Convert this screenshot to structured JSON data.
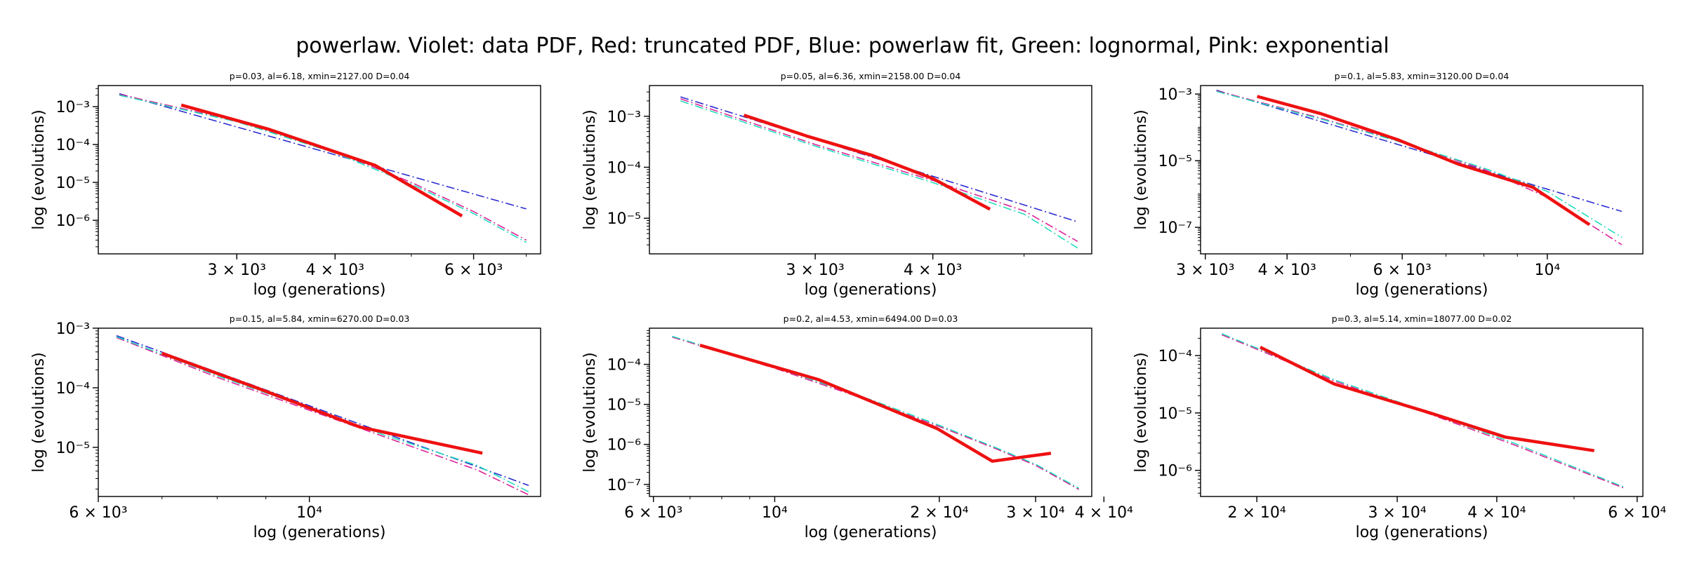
{
  "figure": {
    "suptitle": "powerlaw. Violet: data PDF, Red: truncated PDF, Blue: powerlaw fit, Green: lognormal, Pink: exponential",
    "colors": {
      "data": "#ee00ee",
      "truncated": "#ee1111",
      "powerlaw": "#2a2ad0",
      "lognormal": "#22ddbb",
      "exponential": "#dd2299"
    }
  },
  "chart_data": [
    {
      "type": "line",
      "title": "p=0.03, al=6.18, xmin=2127.00 D=0.04",
      "xlabel": "log (generations)",
      "ylabel": "log (evolutions)",
      "xscale": "log",
      "yscale": "log",
      "xlim": [
        2000,
        7300
      ],
      "ylim": [
        1.3e-07,
        0.0036
      ],
      "xticks": [
        {
          "value": 3000,
          "label": "3 × 10³"
        },
        {
          "value": 4000,
          "label": "4 × 10³"
        },
        {
          "value": 6000,
          "label": "6 × 10³"
        }
      ],
      "yticks": [
        {
          "value": 0.001,
          "label": "10⁻³"
        },
        {
          "value": 0.0001,
          "label": "10⁻⁴"
        },
        {
          "value": 1e-05,
          "label": "10⁻⁵"
        },
        {
          "value": 1e-06,
          "label": "10⁻⁶"
        }
      ],
      "series": [
        {
          "key": "truncated",
          "x": [
            2550,
            3300,
            4500,
            5800
          ],
          "y": [
            0.0011,
            0.00025,
            2.8e-05,
            1.3e-06
          ]
        },
        {
          "key": "powerlaw",
          "x": [
            2127,
            7000
          ],
          "y": [
            0.0022,
            2e-06
          ]
        },
        {
          "key": "lognormal",
          "x": [
            2127,
            3000,
            4000,
            5000,
            6000,
            7000
          ],
          "y": [
            0.002,
            0.0004,
            6e-05,
            9e-06,
            1.5e-06,
            2.6e-07
          ]
        },
        {
          "key": "exponential",
          "x": [
            2127,
            3000,
            4000,
            5000,
            6000,
            7000
          ],
          "y": [
            0.0021,
            0.00042,
            6.5e-05,
            1e-05,
            1.7e-06,
            3e-07
          ]
        }
      ]
    },
    {
      "type": "line",
      "title": "p=0.05, al=6.36, xmin=2158.00 D=0.04",
      "xlabel": "log (generations)",
      "ylabel": "log (evolutions)",
      "xscale": "log",
      "yscale": "log",
      "xlim": [
        2000,
        5900
      ],
      "ylim": [
        2e-06,
        0.004
      ],
      "xticks": [
        {
          "value": 3000,
          "label": "3 × 10³"
        },
        {
          "value": 4000,
          "label": "4 × 10³"
        }
      ],
      "yticks": [
        {
          "value": 0.001,
          "label": "10⁻³"
        },
        {
          "value": 0.0001,
          "label": "10⁻⁴"
        },
        {
          "value": 1e-05,
          "label": "10⁻⁵"
        }
      ],
      "series": [
        {
          "key": "truncated",
          "x": [
            2520,
            2950,
            3450,
            4000,
            4600
          ],
          "y": [
            0.00105,
            0.0004,
            0.00017,
            6e-05,
            1.5e-05
          ]
        },
        {
          "key": "powerlaw",
          "x": [
            2158,
            5700
          ],
          "y": [
            0.0024,
            8.5e-06
          ]
        },
        {
          "key": "lognormal",
          "x": [
            2158,
            3000,
            4000,
            5000,
            5700
          ],
          "y": [
            0.002,
            0.00026,
            5e-05,
            1.2e-05,
            2.6e-06
          ]
        },
        {
          "key": "exponential",
          "x": [
            2158,
            3000,
            4000,
            5000,
            5700
          ],
          "y": [
            0.0022,
            0.00028,
            5.5e-05,
            1.4e-05,
            3.5e-06
          ]
        }
      ]
    },
    {
      "type": "line",
      "title": "p=0.1, al=5.83, xmin=3120.00 D=0.04",
      "xlabel": "log (generations)",
      "ylabel": "log (evolutions)",
      "xscale": "log",
      "yscale": "log",
      "xlim": [
        2950,
        14000
      ],
      "ylim": [
        1.6e-08,
        0.0018
      ],
      "xticks": [
        {
          "value": 3000,
          "label": "3 × 10³"
        },
        {
          "value": 4000,
          "label": "4 × 10³"
        },
        {
          "value": 6000,
          "label": "6 × 10³"
        },
        {
          "value": 10000,
          "label": "10⁴"
        }
      ],
      "yticks": [
        {
          "value": 0.001,
          "label": "10⁻³"
        },
        {
          "value": 1e-05,
          "label": "10⁻⁵"
        },
        {
          "value": 1e-07,
          "label": "10⁻⁷"
        }
      ],
      "series": [
        {
          "key": "truncated",
          "x": [
            3600,
            4500,
            5900,
            7300,
            9500,
            11600
          ],
          "y": [
            0.00085,
            0.00026,
            4.3e-05,
            8e-06,
            1.6e-06,
            1.2e-07
          ]
        },
        {
          "key": "powerlaw",
          "x": [
            3120,
            13000
          ],
          "y": [
            0.0013,
            3e-07
          ]
        },
        {
          "key": "lognormal",
          "x": [
            3120,
            4500,
            6000,
            8000,
            10000,
            13000
          ],
          "y": [
            0.0012,
            0.00018,
            3.5e-05,
            6e-06,
            1.2e-06,
            5e-08
          ]
        },
        {
          "key": "exponential",
          "x": [
            3120,
            4500,
            6000,
            8000,
            10000,
            13000
          ],
          "y": [
            0.00125,
            0.00019,
            3.6e-05,
            5.5e-06,
            8e-07,
            3e-08
          ]
        }
      ]
    },
    {
      "type": "line",
      "title": "p=0.15, al=5.84, xmin=6270.00 D=0.03",
      "xlabel": "log (generations)",
      "ylabel": "log (evolutions)",
      "xscale": "log",
      "yscale": "log",
      "xlim": [
        6000,
        17500
      ],
      "ylim": [
        1.5e-06,
        0.001
      ],
      "xticks": [
        {
          "value": 6000,
          "label": "6 × 10³"
        },
        {
          "value": 10000,
          "label": "10⁴"
        }
      ],
      "yticks": [
        {
          "value": 0.001,
          "label": "10⁻³"
        },
        {
          "value": 0.0001,
          "label": "10⁻⁴"
        },
        {
          "value": 1e-05,
          "label": "10⁻⁵"
        }
      ],
      "series": [
        {
          "key": "truncated",
          "x": [
            7000,
            8800,
            11300,
            15200
          ],
          "y": [
            0.00038,
            0.0001,
            2.2e-05,
            8e-06
          ]
        },
        {
          "key": "powerlaw",
          "x": [
            6270,
            17000
          ],
          "y": [
            0.00075,
            2.3e-06
          ]
        },
        {
          "key": "lognormal",
          "x": [
            6270,
            8000,
            10000,
            12000,
            15000,
            17000
          ],
          "y": [
            0.00072,
            0.00016,
            4.5e-05,
            1.6e-05,
            5e-06,
            1.8e-06
          ]
        },
        {
          "key": "exponential",
          "x": [
            6270,
            8000,
            10000,
            12000,
            15000,
            17000
          ],
          "y": [
            0.0007,
            0.00015,
            4.2e-05,
            1.5e-05,
            4.2e-06,
            1.6e-06
          ]
        }
      ]
    },
    {
      "type": "line",
      "title": "p=0.2, al=4.53, xmin=6494.00 D=0.03",
      "xlabel": "log (generations)",
      "ylabel": "log (evolutions)",
      "xscale": "log",
      "yscale": "log",
      "xlim": [
        5900,
        38000
      ],
      "ylim": [
        5e-08,
        0.0008
      ],
      "xticks": [
        {
          "value": 6000,
          "label": "6 × 10³"
        },
        {
          "value": 10000,
          "label": "10⁴"
        },
        {
          "value": 20000,
          "label": "2 × 10⁴"
        },
        {
          "value": 30000,
          "label": "3 × 10⁴"
        },
        {
          "value": 40000,
          "label": "4 × 10⁴"
        }
      ],
      "yticks": [
        {
          "value": 0.0001,
          "label": "10⁻⁴"
        },
        {
          "value": 1e-05,
          "label": "10⁻⁵"
        },
        {
          "value": 1e-06,
          "label": "10⁻⁶"
        },
        {
          "value": 1e-07,
          "label": "10⁻⁷"
        }
      ],
      "series": [
        {
          "key": "truncated",
          "x": [
            7300,
            12000,
            19800,
            25000,
            32000
          ],
          "y": [
            0.0003,
            4.2e-05,
            2.5e-06,
            3.8e-07,
            6e-07
          ]
        },
        {
          "key": "lognormal",
          "x": [
            6494,
            10000,
            15000,
            20000,
            25000,
            30000,
            36000
          ],
          "y": [
            0.0005,
            8.5e-05,
            1.3e-05,
            3e-06,
            9e-07,
            3.2e-07,
            8e-08
          ]
        },
        {
          "key": "exponential",
          "x": [
            6494,
            10000,
            15000,
            20000,
            25000,
            30000,
            36000
          ],
          "y": [
            0.00048,
            8e-05,
            1.2e-05,
            2.8e-06,
            8.5e-07,
            3e-07,
            7.5e-08
          ]
        }
      ]
    },
    {
      "type": "line",
      "title": "p=0.3, al=5.14, xmin=18077.00 D=0.02",
      "xlabel": "log (generations)",
      "ylabel": "log (evolutions)",
      "xscale": "log",
      "yscale": "log",
      "xlim": [
        17000,
        61000
      ],
      "ylim": [
        3.5e-07,
        0.0003
      ],
      "xticks": [
        {
          "value": 20000,
          "label": "2 × 10⁴"
        },
        {
          "value": 30000,
          "label": "3 × 10⁴"
        },
        {
          "value": 40000,
          "label": "4 × 10⁴"
        },
        {
          "value": 60000,
          "label": "6 × 10⁴"
        }
      ],
      "yticks": [
        {
          "value": 0.0001,
          "label": "10⁻⁴"
        },
        {
          "value": 1e-05,
          "label": "10⁻⁵"
        },
        {
          "value": 1e-06,
          "label": "10⁻⁶"
        }
      ],
      "series": [
        {
          "key": "truncated",
          "x": [
            20200,
            25000,
            33000,
            41000,
            53000
          ],
          "y": [
            0.00014,
            3.2e-05,
            1e-05,
            3.8e-06,
            2.2e-06
          ]
        },
        {
          "key": "lognormal",
          "x": [
            18077,
            25000,
            33000,
            42000,
            58000
          ],
          "y": [
            0.00024,
            3.8e-05,
            1e-05,
            3e-06,
            5e-07
          ]
        },
        {
          "key": "exponential",
          "x": [
            18077,
            25000,
            33000,
            42000,
            58000
          ],
          "y": [
            0.00023,
            3.6e-05,
            9.5e-06,
            2.8e-06,
            4.8e-07
          ]
        }
      ]
    }
  ]
}
